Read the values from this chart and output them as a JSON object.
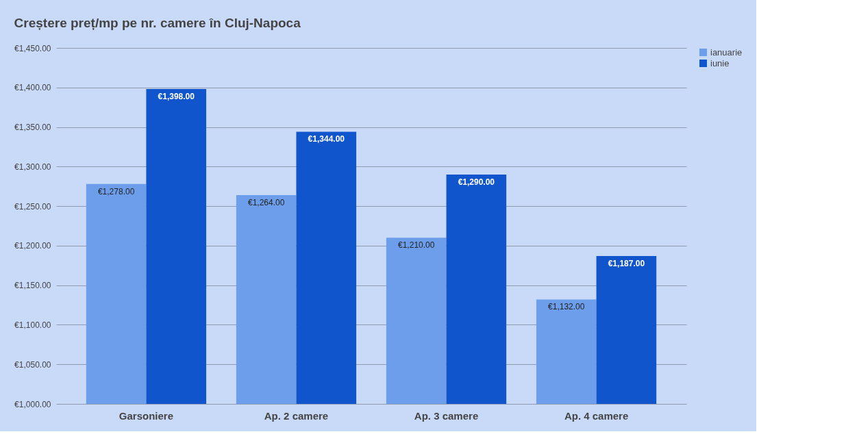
{
  "chart_data": {
    "type": "bar",
    "title": "Creștere preț/mp pe nr. camere în Cluj-Napoca",
    "categories": [
      "Garsoniere",
      "Ap. 2 camere",
      "Ap. 3 camere",
      "Ap. 4 camere"
    ],
    "series": [
      {
        "name": "ianuarie",
        "color": "#6d9eeb",
        "values": [
          1278,
          1264,
          1210,
          1132
        ],
        "value_labels": [
          "€1,278.00",
          "€1,264.00",
          "€1,210.00",
          "€1,132.00"
        ]
      },
      {
        "name": "iunie",
        "color": "#1155cc",
        "values": [
          1398,
          1344,
          1290,
          1187
        ],
        "value_labels": [
          "€1,398.00",
          "€1,344.00",
          "€1,290.00",
          "€1,187.00"
        ]
      }
    ],
    "ylim": [
      1000,
      1450
    ],
    "yticks": [
      {
        "value": 1000,
        "label": "€1,000.00"
      },
      {
        "value": 1050,
        "label": "€1,050.00"
      },
      {
        "value": 1100,
        "label": "€1,100.00"
      },
      {
        "value": 1150,
        "label": "€1,150.00"
      },
      {
        "value": 1200,
        "label": "€1,200.00"
      },
      {
        "value": 1250,
        "label": "€1,250.00"
      },
      {
        "value": 1300,
        "label": "€1,300.00"
      },
      {
        "value": 1350,
        "label": "€1,350.00"
      },
      {
        "value": 1400,
        "label": "€1,400.00"
      },
      {
        "value": 1450,
        "label": "€1,450.00"
      }
    ],
    "grid": "y",
    "legend": "top right"
  }
}
